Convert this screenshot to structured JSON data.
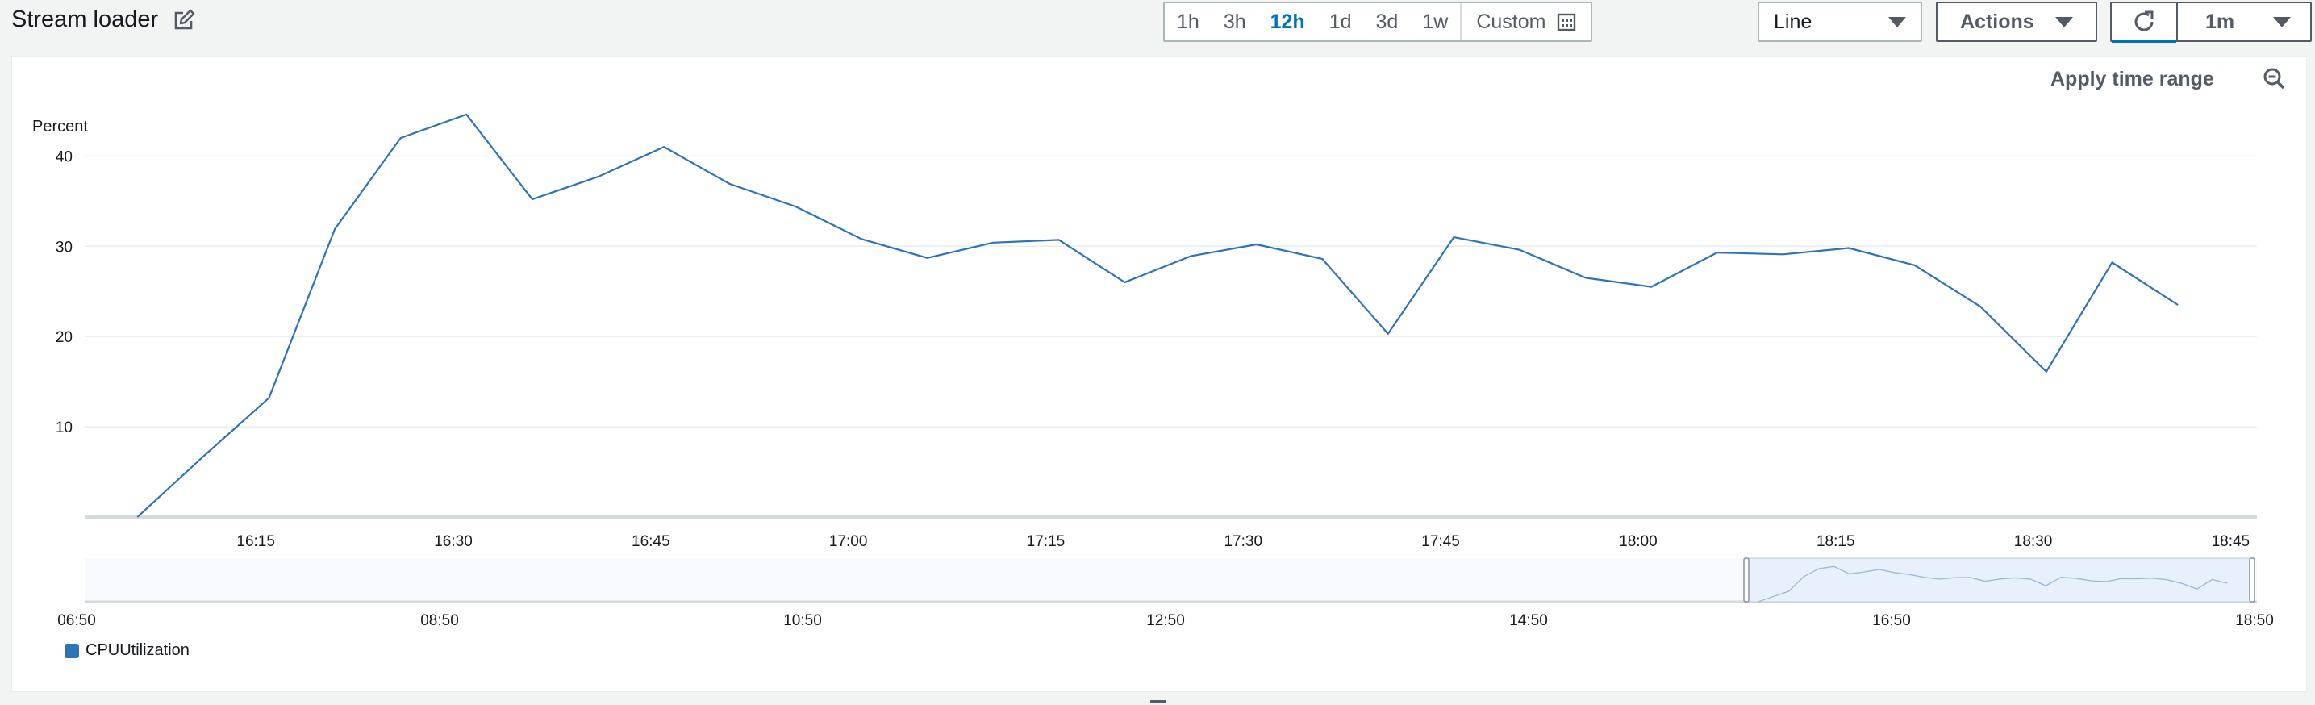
{
  "header": {
    "title": "Stream loader",
    "time_ranges": [
      {
        "label": "1h",
        "active": false
      },
      {
        "label": "3h",
        "active": false
      },
      {
        "label": "12h",
        "active": true
      },
      {
        "label": "1d",
        "active": false
      },
      {
        "label": "3d",
        "active": false
      },
      {
        "label": "1w",
        "active": false
      }
    ],
    "custom_label": "Custom",
    "chart_type_select": "Line",
    "actions_label": "Actions",
    "refresh_interval": "1m"
  },
  "panel": {
    "apply_time_range": "Apply time range"
  },
  "colors": {
    "series": "#2e73b8",
    "accent": "#0073bb"
  },
  "chart_data": {
    "type": "line",
    "ylabel": "Percent",
    "ylim": [
      0,
      47
    ],
    "yticks": [
      10,
      20,
      30,
      40
    ],
    "x": [
      "16:06",
      "16:11",
      "16:16",
      "16:21",
      "16:26",
      "16:31",
      "16:36",
      "16:41",
      "16:46",
      "16:51",
      "16:56",
      "17:01",
      "17:06",
      "17:11",
      "17:16",
      "17:21",
      "17:26",
      "17:31",
      "17:36",
      "17:41",
      "17:46",
      "17:51",
      "17:56",
      "18:01",
      "18:06",
      "18:11",
      "18:16",
      "18:21",
      "18:26",
      "18:31",
      "18:36",
      "18:41",
      "18:46"
    ],
    "xticks": [
      "16:15",
      "16:30",
      "16:45",
      "17:00",
      "17:15",
      "17:30",
      "17:45",
      "18:00",
      "18:15",
      "18:30",
      "18:45"
    ],
    "series": [
      {
        "name": "CPUUtilization",
        "values": [
          0,
          6.7,
          13.2,
          31.9,
          42.0,
          44.6,
          35.2,
          37.7,
          41.0,
          36.9,
          34.4,
          30.8,
          28.7,
          30.4,
          30.7,
          26.0,
          28.9,
          30.2,
          28.6,
          20.3,
          31.0,
          29.6,
          26.5,
          25.5,
          29.3,
          29.1,
          29.8,
          27.9,
          23.3,
          16.1,
          28.2,
          23.5,
          null
        ]
      }
    ],
    "overview": {
      "xticks": [
        "06:50",
        "08:50",
        "10:50",
        "12:50",
        "14:50",
        "16:50",
        "18:50"
      ]
    },
    "legend": [
      "CPUUtilization"
    ],
    "grid": true
  }
}
